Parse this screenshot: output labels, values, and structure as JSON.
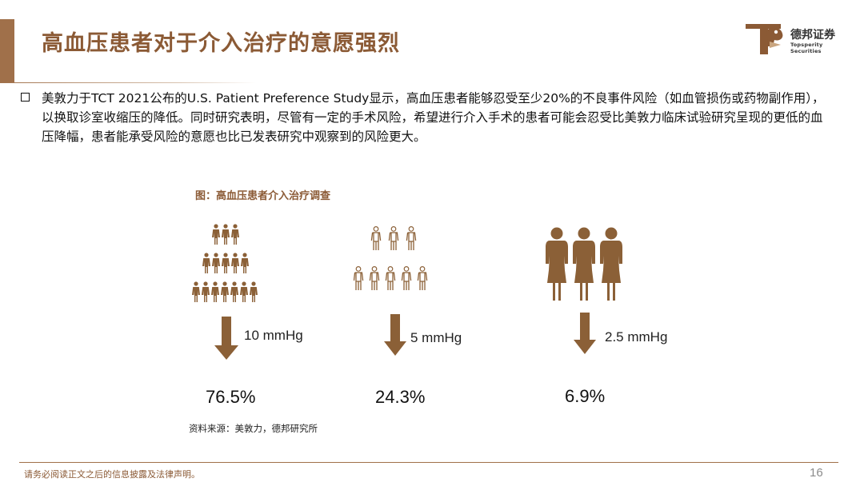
{
  "header": {
    "title": "高血压患者对于介入治疗的意愿强烈",
    "logo": {
      "name_cn": "德邦证券",
      "name_en": "Topsperity Securities"
    }
  },
  "body": {
    "paragraph": "美敦力于TCT 2021公布的U.S. Patient Preference Study显示，高血压患者能够忍受至少20%的不良事件风险（如血管损伤或药物副作用），以换取诊室收缩压的降低。同时研究表明，尽管有一定的手术风险，希望进行介入手术的患者可能会忍受比美敦力临床试验研究呈现的更低的血压降幅，患者能承受风险的意愿也比已发表研究中观察到的风险更大。"
  },
  "figure": {
    "caption": "图：高血压患者介入治疗调查",
    "groups": [
      {
        "reduction": "10 mmHg",
        "percent": "76.5%",
        "icon": "crowd-filled-icon"
      },
      {
        "reduction": "5 mmHg",
        "percent": "24.3%",
        "icon": "crowd-outline-icon"
      },
      {
        "reduction": "2.5 mmHg",
        "percent": "6.9%",
        "icon": "three-people-large-icon"
      }
    ],
    "source": "资料来源：美敦力，德邦研究所"
  },
  "footer": {
    "disclaimer": "请务必阅读正文之后的信息披露及法律声明。",
    "page": "16"
  },
  "colors": {
    "brand_brown": "#8b5a35",
    "icon_brown": "#8b6037"
  }
}
